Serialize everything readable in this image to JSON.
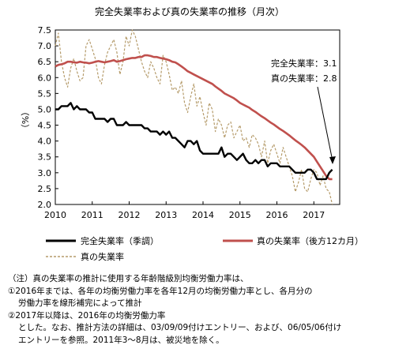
{
  "chart_data": {
    "type": "line",
    "title": "完全失業率および真の失業率の推移（月次）",
    "ylabel": "（%）",
    "xlabel": "",
    "ylim": [
      2.0,
      7.5
    ],
    "yticks": [
      "2.0",
      "2.5",
      "3.0",
      "3.5",
      "4.0",
      "4.5",
      "5.0",
      "5.5",
      "6.0",
      "6.5",
      "7.0",
      "7.5"
    ],
    "xlim": [
      2010.0,
      2017.7
    ],
    "xticks": [
      "2010",
      "2011",
      "2012",
      "2013",
      "2014",
      "2015",
      "2016",
      "2017"
    ],
    "grid": false,
    "legend_position": "bottom",
    "annotations": [
      {
        "text": "完全失業率：3.1"
      },
      {
        "text": "真の失業率：2.8"
      }
    ],
    "series": [
      {
        "name": "完全失業率（季調）",
        "color": "#000000",
        "style": "solid",
        "x": [
          2010.0,
          2010.083,
          2010.167,
          2010.25,
          2010.333,
          2010.417,
          2010.5,
          2010.583,
          2010.667,
          2010.75,
          2010.833,
          2010.917,
          2011.0,
          2011.083,
          2011.167,
          2011.25,
          2011.333,
          2011.417,
          2011.5,
          2011.583,
          2011.667,
          2011.75,
          2011.833,
          2011.917,
          2012.0,
          2012.083,
          2012.167,
          2012.25,
          2012.333,
          2012.417,
          2012.5,
          2012.583,
          2012.667,
          2012.75,
          2012.833,
          2012.917,
          2013.0,
          2013.083,
          2013.167,
          2013.25,
          2013.333,
          2013.417,
          2013.5,
          2013.583,
          2013.667,
          2013.75,
          2013.833,
          2013.917,
          2014.0,
          2014.083,
          2014.167,
          2014.25,
          2014.333,
          2014.417,
          2014.5,
          2014.583,
          2014.667,
          2014.75,
          2014.833,
          2014.917,
          2015.0,
          2015.083,
          2015.167,
          2015.25,
          2015.333,
          2015.417,
          2015.5,
          2015.583,
          2015.667,
          2015.75,
          2015.833,
          2015.917,
          2016.0,
          2016.083,
          2016.167,
          2016.25,
          2016.333,
          2016.417,
          2016.5,
          2016.583,
          2016.667,
          2016.75,
          2016.833,
          2016.917,
          2017.0,
          2017.083,
          2017.167,
          2017.25,
          2017.333,
          2017.417,
          2017.5
        ],
        "values": [
          5.0,
          5.0,
          5.1,
          5.1,
          5.1,
          5.2,
          5.0,
          5.1,
          5.0,
          5.0,
          5.0,
          4.9,
          4.9,
          4.7,
          4.7,
          4.7,
          4.7,
          4.6,
          4.7,
          4.7,
          4.5,
          4.5,
          4.5,
          4.6,
          4.5,
          4.5,
          4.5,
          4.5,
          4.5,
          4.4,
          4.4,
          4.3,
          4.3,
          4.3,
          4.2,
          4.3,
          4.2,
          4.3,
          4.1,
          4.1,
          4.0,
          3.9,
          3.8,
          4.0,
          4.0,
          3.9,
          4.0,
          3.7,
          3.6,
          3.6,
          3.6,
          3.6,
          3.6,
          3.6,
          3.8,
          3.5,
          3.6,
          3.6,
          3.5,
          3.4,
          3.5,
          3.6,
          3.4,
          3.3,
          3.3,
          3.4,
          3.3,
          3.4,
          3.4,
          3.2,
          3.3,
          3.3,
          3.3,
          3.2,
          3.2,
          3.2,
          3.2,
          3.1,
          3.0,
          3.0,
          3.0,
          3.0,
          3.1,
          3.1,
          3.0,
          2.8,
          2.8,
          2.8,
          2.8,
          3.0,
          3.1
        ]
      },
      {
        "name": "真の失業率（後方12カ月）",
        "color": "#c0504d",
        "style": "solid",
        "x": [
          2010.0,
          2010.083,
          2010.167,
          2010.25,
          2010.333,
          2010.417,
          2010.5,
          2010.583,
          2010.667,
          2010.75,
          2010.833,
          2010.917,
          2011.0,
          2011.083,
          2011.167,
          2011.25,
          2011.333,
          2011.417,
          2011.5,
          2011.583,
          2011.667,
          2011.75,
          2011.833,
          2011.917,
          2012.0,
          2012.083,
          2012.167,
          2012.25,
          2012.333,
          2012.417,
          2012.5,
          2012.583,
          2012.667,
          2012.75,
          2012.833,
          2012.917,
          2013.0,
          2013.083,
          2013.167,
          2013.25,
          2013.333,
          2013.417,
          2013.5,
          2013.583,
          2013.667,
          2013.75,
          2013.833,
          2013.917,
          2014.0,
          2014.083,
          2014.167,
          2014.25,
          2014.333,
          2014.417,
          2014.5,
          2014.583,
          2014.667,
          2014.75,
          2014.833,
          2014.917,
          2015.0,
          2015.083,
          2015.167,
          2015.25,
          2015.333,
          2015.417,
          2015.5,
          2015.583,
          2015.667,
          2015.75,
          2015.833,
          2015.917,
          2016.0,
          2016.083,
          2016.167,
          2016.25,
          2016.333,
          2016.417,
          2016.5,
          2016.583,
          2016.667,
          2016.75,
          2016.833,
          2016.917,
          2017.0,
          2017.083,
          2017.167,
          2017.25,
          2017.333,
          2017.417,
          2017.5
        ],
        "values": [
          6.35,
          6.4,
          6.42,
          6.45,
          6.5,
          6.5,
          6.48,
          6.47,
          6.5,
          6.48,
          6.47,
          6.45,
          6.47,
          6.5,
          6.52,
          6.5,
          6.48,
          6.5,
          6.52,
          6.55,
          6.5,
          6.52,
          6.55,
          6.58,
          6.6,
          6.62,
          6.62,
          6.65,
          6.65,
          6.7,
          6.7,
          6.68,
          6.65,
          6.65,
          6.62,
          6.6,
          6.58,
          6.55,
          6.5,
          6.48,
          6.42,
          6.35,
          6.28,
          6.2,
          6.15,
          6.1,
          6.05,
          6.0,
          5.95,
          5.9,
          5.85,
          5.8,
          5.72,
          5.65,
          5.58,
          5.5,
          5.45,
          5.4,
          5.35,
          5.28,
          5.2,
          5.15,
          5.1,
          5.05,
          4.98,
          4.92,
          4.85,
          4.78,
          4.72,
          4.65,
          4.58,
          4.52,
          4.45,
          4.38,
          4.32,
          4.25,
          4.18,
          4.1,
          4.02,
          3.95,
          3.88,
          3.8,
          3.7,
          3.6,
          3.5,
          3.35,
          3.2,
          3.05,
          2.9,
          2.8,
          2.8
        ]
      },
      {
        "name": "真の失業率",
        "color": "#b59b6a",
        "style": "dashed",
        "x": [
          2010.0,
          2010.083,
          2010.167,
          2010.25,
          2010.333,
          2010.417,
          2010.5,
          2010.583,
          2010.667,
          2010.75,
          2010.833,
          2010.917,
          2011.0,
          2011.083,
          2011.167,
          2011.25,
          2011.333,
          2011.417,
          2011.5,
          2011.583,
          2011.667,
          2011.75,
          2011.833,
          2011.917,
          2012.0,
          2012.083,
          2012.167,
          2012.25,
          2012.333,
          2012.417,
          2012.5,
          2012.583,
          2012.667,
          2012.75,
          2012.833,
          2012.917,
          2013.0,
          2013.083,
          2013.167,
          2013.25,
          2013.333,
          2013.417,
          2013.5,
          2013.583,
          2013.667,
          2013.75,
          2013.833,
          2013.917,
          2014.0,
          2014.083,
          2014.167,
          2014.25,
          2014.333,
          2014.417,
          2014.5,
          2014.583,
          2014.667,
          2014.75,
          2014.833,
          2014.917,
          2015.0,
          2015.083,
          2015.167,
          2015.25,
          2015.333,
          2015.417,
          2015.5,
          2015.583,
          2015.667,
          2015.75,
          2015.833,
          2015.917,
          2016.0,
          2016.083,
          2016.167,
          2016.25,
          2016.333,
          2016.417,
          2016.5,
          2016.583,
          2016.667,
          2016.75,
          2016.833,
          2016.917,
          2017.0,
          2017.083,
          2017.167,
          2017.25,
          2017.333,
          2017.417,
          2017.5
        ],
        "values": [
          7.0,
          7.4,
          6.5,
          6.0,
          5.7,
          6.3,
          6.6,
          6.2,
          5.9,
          6.0,
          7.0,
          7.2,
          6.9,
          6.6,
          6.0,
          5.8,
          6.4,
          6.8,
          7.0,
          7.2,
          6.8,
          6.1,
          6.5,
          7.3,
          7.0,
          7.5,
          7.3,
          6.9,
          6.5,
          6.2,
          6.0,
          6.5,
          6.3,
          6.0,
          5.8,
          6.7,
          6.5,
          6.1,
          5.6,
          5.7,
          5.5,
          5.9,
          5.2,
          4.9,
          5.4,
          5.8,
          5.1,
          5.4,
          4.9,
          4.5,
          5.2,
          5.0,
          4.3,
          4.7,
          4.5,
          4.1,
          4.5,
          4.6,
          4.1,
          4.3,
          4.5,
          4.0,
          4.1,
          3.8,
          4.2,
          4.1,
          3.9,
          3.5,
          4.0,
          3.3,
          3.7,
          3.9,
          3.6,
          3.3,
          3.8,
          3.5,
          3.2,
          2.9,
          2.4,
          2.7,
          3.1,
          2.5,
          2.4,
          2.8,
          3.1,
          3.0,
          2.6,
          2.9,
          2.5,
          2.4,
          2.0
        ]
      }
    ]
  },
  "notes": {
    "line1": "（注）真の失業率の推計に使用する年齢階級別均衡労働力率は、",
    "line2": "①2016年までは、各年の均衡労働力率を各年12月の均衡労働力率とし、各月分の",
    "line3": "労働力率を線形補完によって推計",
    "line4": "②2017年以降は、2016年の均衡労働力率",
    "line5": "とした。なお、推計方法の詳細は、03/09/09付けエントリー、および、06/05/06付け",
    "line6": "エントリーを参照。2011年3～8月は、被災地を除く。"
  }
}
